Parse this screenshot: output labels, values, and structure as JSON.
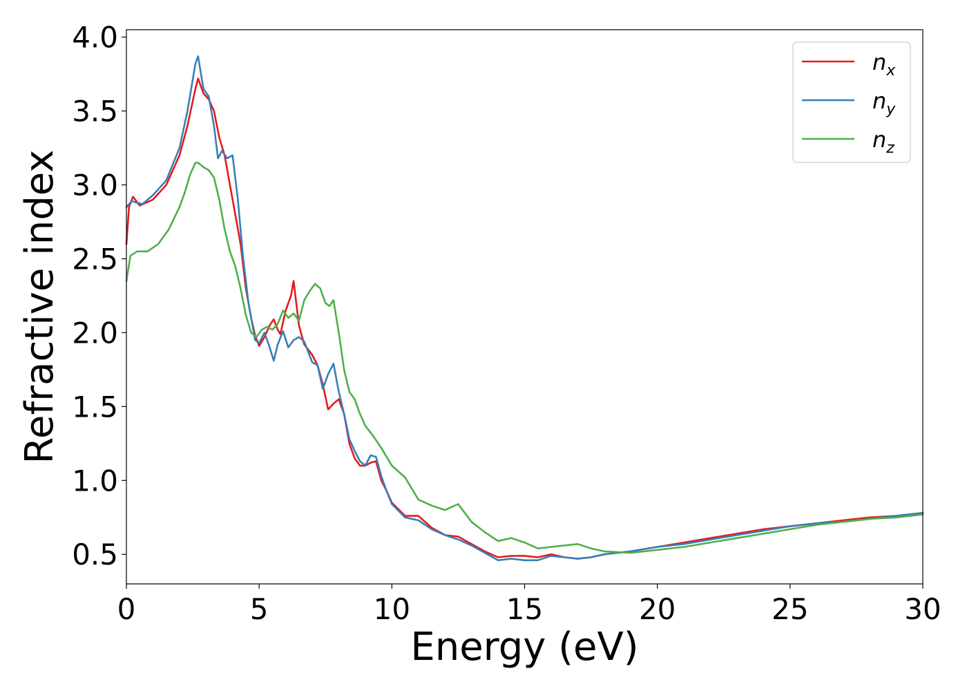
{
  "chart_data": {
    "type": "line",
    "title": "",
    "xlabel": "Energy (eV)",
    "ylabel": "Refractive index",
    "xlim": [
      0,
      30
    ],
    "ylim": [
      0.3,
      4.05
    ],
    "xticks": [
      0,
      5,
      10,
      15,
      20,
      25,
      30
    ],
    "xtick_labels": [
      "0",
      "5",
      "10",
      "15",
      "20",
      "25",
      "30"
    ],
    "yticks": [
      0.5,
      1.0,
      1.5,
      2.0,
      2.5,
      3.0,
      3.5,
      4.0
    ],
    "ytick_labels": [
      "0.5",
      "1.0",
      "1.5",
      "2.0",
      "2.5",
      "3.0",
      "3.5",
      "4.0"
    ],
    "grid": false,
    "legend_position": "top-right",
    "series": [
      {
        "name": "n_x",
        "label_main": "n",
        "label_sub": "x",
        "color": "#e41a1c",
        "x": [
          0,
          0.1,
          0.25,
          0.5,
          1.0,
          1.5,
          2.0,
          2.3,
          2.6,
          2.7,
          2.9,
          3.1,
          3.3,
          3.5,
          3.7,
          3.9,
          4.1,
          4.3,
          4.5,
          4.7,
          4.85,
          5.0,
          5.2,
          5.4,
          5.55,
          5.7,
          5.8,
          6.0,
          6.2,
          6.3,
          6.5,
          6.7,
          7.0,
          7.2,
          7.4,
          7.6,
          7.8,
          8.0,
          8.2,
          8.4,
          8.6,
          8.8,
          9.0,
          9.2,
          9.4,
          9.6,
          9.8,
          10.0,
          10.5,
          11.0,
          11.5,
          12.0,
          12.5,
          13.0,
          13.5,
          14.0,
          14.5,
          15.0,
          15.5,
          16.0,
          16.5,
          17.0,
          17.5,
          18.0,
          19.0,
          20.0,
          21.0,
          22.0,
          23.0,
          24.0,
          25.0,
          26.0,
          27.0,
          28.0,
          29.0,
          30.0
        ],
        "y": [
          2.6,
          2.85,
          2.92,
          2.86,
          2.9,
          3.0,
          3.2,
          3.4,
          3.65,
          3.72,
          3.62,
          3.58,
          3.5,
          3.32,
          3.2,
          3.0,
          2.8,
          2.6,
          2.3,
          2.1,
          1.98,
          1.91,
          1.97,
          2.05,
          2.09,
          2.02,
          1.99,
          2.15,
          2.25,
          2.35,
          2.05,
          1.92,
          1.85,
          1.78,
          1.65,
          1.48,
          1.52,
          1.55,
          1.45,
          1.25,
          1.15,
          1.1,
          1.1,
          1.12,
          1.13,
          1.0,
          0.93,
          0.85,
          0.76,
          0.76,
          0.68,
          0.63,
          0.62,
          0.57,
          0.52,
          0.48,
          0.49,
          0.49,
          0.48,
          0.5,
          0.48,
          0.47,
          0.48,
          0.5,
          0.52,
          0.55,
          0.58,
          0.61,
          0.64,
          0.67,
          0.69,
          0.71,
          0.73,
          0.75,
          0.76,
          0.78
        ]
      },
      {
        "name": "n_y",
        "label_main": "n",
        "label_sub": "y",
        "color": "#377eb8",
        "x": [
          0,
          0.2,
          0.4,
          0.6,
          1.0,
          1.5,
          2.0,
          2.3,
          2.6,
          2.7,
          2.9,
          3.1,
          3.3,
          3.45,
          3.6,
          3.8,
          4.0,
          4.2,
          4.4,
          4.6,
          4.85,
          5.0,
          5.2,
          5.4,
          5.55,
          5.7,
          5.9,
          6.1,
          6.3,
          6.5,
          6.7,
          7.0,
          7.2,
          7.4,
          7.6,
          7.8,
          8.0,
          8.2,
          8.4,
          8.6,
          8.8,
          9.0,
          9.2,
          9.4,
          9.6,
          9.8,
          10.0,
          10.5,
          11.0,
          11.5,
          12.0,
          12.5,
          13.0,
          13.5,
          14.0,
          14.5,
          15.0,
          15.5,
          16.0,
          16.5,
          17.0,
          17.5,
          18.0,
          19.0,
          20.0,
          21.0,
          22.0,
          23.0,
          24.0,
          25.0,
          26.0,
          27.0,
          28.0,
          29.0,
          30.0
        ],
        "y": [
          2.85,
          2.89,
          2.88,
          2.87,
          2.93,
          3.03,
          3.25,
          3.5,
          3.82,
          3.87,
          3.65,
          3.6,
          3.4,
          3.18,
          3.23,
          3.18,
          3.2,
          2.9,
          2.5,
          2.2,
          1.95,
          1.93,
          2.0,
          1.9,
          1.81,
          1.92,
          2.01,
          1.9,
          1.95,
          1.97,
          1.94,
          1.8,
          1.78,
          1.62,
          1.72,
          1.79,
          1.6,
          1.45,
          1.28,
          1.2,
          1.13,
          1.1,
          1.17,
          1.16,
          1.03,
          0.93,
          0.84,
          0.75,
          0.73,
          0.67,
          0.63,
          0.6,
          0.56,
          0.51,
          0.46,
          0.47,
          0.46,
          0.46,
          0.49,
          0.48,
          0.47,
          0.48,
          0.5,
          0.52,
          0.55,
          0.57,
          0.6,
          0.63,
          0.66,
          0.69,
          0.71,
          0.72,
          0.74,
          0.76,
          0.78
        ]
      },
      {
        "name": "n_z",
        "label_main": "n",
        "label_sub": "z",
        "color": "#4daf4a",
        "x": [
          0,
          0.15,
          0.4,
          0.8,
          1.2,
          1.6,
          2.0,
          2.2,
          2.4,
          2.6,
          2.7,
          2.9,
          3.1,
          3.3,
          3.5,
          3.7,
          3.9,
          4.1,
          4.3,
          4.5,
          4.7,
          4.9,
          5.1,
          5.3,
          5.5,
          5.7,
          5.9,
          6.1,
          6.3,
          6.5,
          6.7,
          6.9,
          7.1,
          7.3,
          7.5,
          7.65,
          7.8,
          8.0,
          8.2,
          8.4,
          8.6,
          8.8,
          9.0,
          9.3,
          9.6,
          10.0,
          10.5,
          11.0,
          11.5,
          12.0,
          12.5,
          13.0,
          13.5,
          14.0,
          14.5,
          15.0,
          15.5,
          16.0,
          16.5,
          17.0,
          17.5,
          18.0,
          19.0,
          20.0,
          21.0,
          22.0,
          23.0,
          24.0,
          25.0,
          26.0,
          27.0,
          28.0,
          29.0,
          30.0
        ],
        "y": [
          2.35,
          2.52,
          2.55,
          2.55,
          2.6,
          2.7,
          2.85,
          2.95,
          3.07,
          3.15,
          3.15,
          3.12,
          3.1,
          3.05,
          2.9,
          2.7,
          2.55,
          2.45,
          2.3,
          2.12,
          2.0,
          1.97,
          2.02,
          2.04,
          2.02,
          2.06,
          2.15,
          2.1,
          2.13,
          2.08,
          2.22,
          2.28,
          2.33,
          2.3,
          2.2,
          2.18,
          2.22,
          2.0,
          1.75,
          1.6,
          1.55,
          1.45,
          1.37,
          1.3,
          1.22,
          1.1,
          1.02,
          0.87,
          0.83,
          0.8,
          0.84,
          0.72,
          0.65,
          0.59,
          0.61,
          0.58,
          0.54,
          0.55,
          0.56,
          0.57,
          0.54,
          0.52,
          0.51,
          0.53,
          0.55,
          0.58,
          0.61,
          0.64,
          0.67,
          0.7,
          0.72,
          0.74,
          0.75,
          0.77
        ]
      }
    ]
  }
}
